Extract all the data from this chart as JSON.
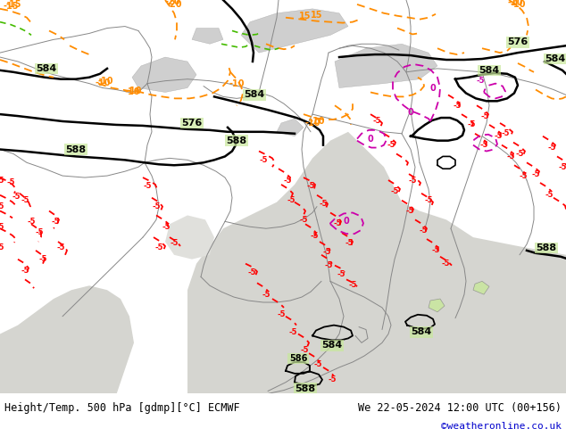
{
  "title_left": "Height/Temp. 500 hPa [gdmp][°C] ECMWF",
  "title_right": "We 22-05-2024 12:00 UTC (00+156)",
  "copyright": "©weatheronline.co.uk",
  "bg_land": "#c8e89a",
  "bg_sea": "#d8d8d8",
  "bg_mountain": "#bbbbbb",
  "fig_width": 6.34,
  "fig_height": 4.9,
  "dpi": 100,
  "bar_color": "#ffffff",
  "copyright_color": "#0000cc",
  "black": "#000000",
  "orange": "#ff8c00",
  "red": "#ff0000",
  "magenta": "#cc00aa",
  "green_contour": "#44bb00"
}
